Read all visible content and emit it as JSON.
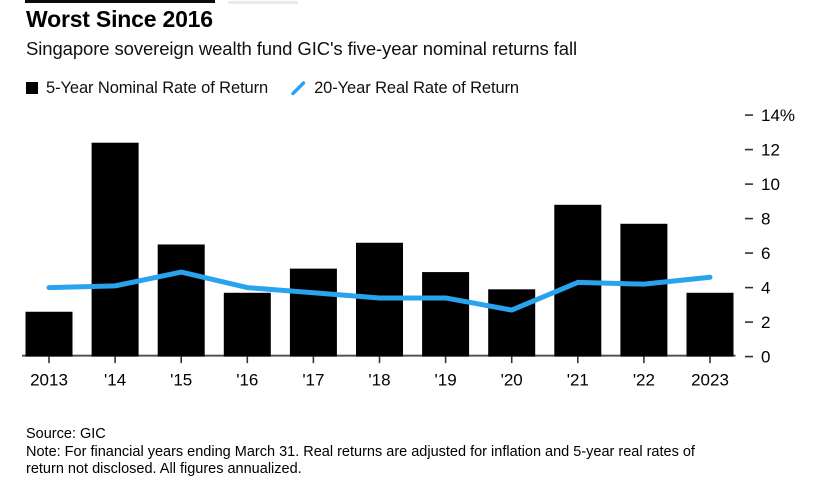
{
  "header": {
    "title": "Worst Since 2016",
    "subtitle": "Singapore sovereign wealth fund GIC's five-year nominal returns fall"
  },
  "legend": {
    "items": [
      {
        "marker": "square",
        "label": "5-Year Nominal Rate of Return",
        "color": "#000000"
      },
      {
        "marker": "line",
        "label": "20-Year Real Rate of Return",
        "color": "#2aa3ef"
      }
    ]
  },
  "chart_data": {
    "type": "bar+line",
    "title": "Worst Since 2016",
    "subtitle": "Singapore sovereign wealth fund GIC's five-year nominal returns fall",
    "categories": [
      "2013",
      "'14",
      "'15",
      "'16",
      "'17",
      "'18",
      "'19",
      "'20",
      "'21",
      "'22",
      "2023"
    ],
    "series": [
      {
        "name": "5-Year Nominal Rate of Return",
        "type": "bar",
        "color": "#000000",
        "values": [
          2.6,
          12.4,
          6.5,
          3.7,
          5.1,
          6.6,
          4.9,
          3.9,
          8.8,
          7.7,
          3.7
        ]
      },
      {
        "name": "20-Year Real Rate of Return",
        "type": "line",
        "color": "#2aa3ef",
        "values": [
          4.0,
          4.1,
          4.9,
          4.0,
          3.7,
          3.4,
          3.4,
          2.7,
          4.3,
          4.2,
          4.6
        ]
      }
    ],
    "y_axis": {
      "side": "right",
      "unit": "%",
      "ticks": [
        {
          "v": 0,
          "label": "0"
        },
        {
          "v": 2,
          "label": "2"
        },
        {
          "v": 4,
          "label": "4"
        },
        {
          "v": 6,
          "label": "6"
        },
        {
          "v": 8,
          "label": "8"
        },
        {
          "v": 10,
          "label": "10"
        },
        {
          "v": 12,
          "label": "12"
        },
        {
          "v": 14,
          "label": "14%"
        }
      ],
      "ylim": [
        0,
        14.5
      ]
    },
    "grid": false,
    "legend_position": "top"
  },
  "footer": {
    "source": "Source: GIC",
    "note": "Note: For financial years ending March 31. Real returns are adjusted for inflation and 5-year real rates of return not disclosed. All figures annualized."
  },
  "colors": {
    "background": "#ffffff",
    "bar": "#000000",
    "line": "#2aa3ef",
    "axis_line": "#4d4d4d",
    "tick": "#333333",
    "text": "#000000"
  }
}
